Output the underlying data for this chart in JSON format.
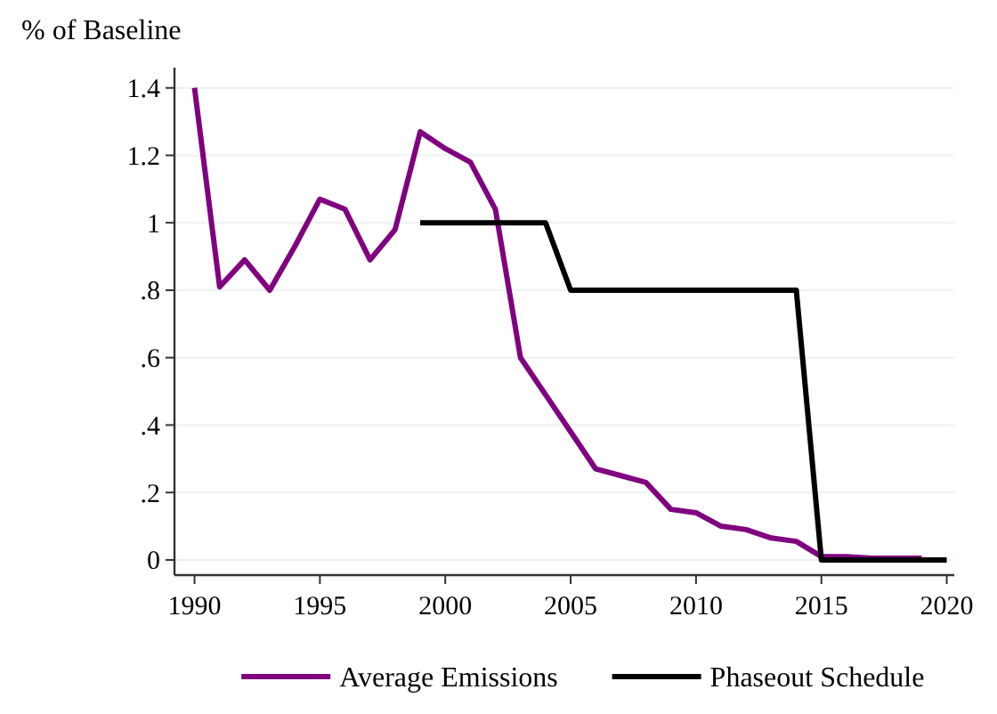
{
  "chart_data": {
    "type": "line",
    "ylabel": "% of Baseline",
    "xlim": [
      1989.2,
      2020.3
    ],
    "xticks": [
      1990,
      1995,
      2000,
      2005,
      2010,
      2015,
      2020
    ],
    "ylim": [
      -0.045,
      1.46
    ],
    "yticks": [
      {
        "value": 0,
        "label": "0"
      },
      {
        "value": 0.2,
        "label": ".2"
      },
      {
        "value": 0.4,
        "label": ".4"
      },
      {
        "value": 0.6,
        "label": ".6"
      },
      {
        "value": 0.8,
        "label": ".8"
      },
      {
        "value": 1,
        "label": "1"
      },
      {
        "value": 1.2,
        "label": "1.2"
      },
      {
        "value": 1.4,
        "label": "1.4"
      }
    ],
    "grid": "y",
    "legend": "bottom",
    "marker": "none",
    "line_style": "solid",
    "series": [
      {
        "name": "Average Emissions",
        "color": "#800080",
        "x": [
          1990,
          1991,
          1992,
          1993,
          1994,
          1995,
          1996,
          1997,
          1998,
          1999,
          2000,
          2001,
          2002,
          2003,
          2004,
          2005,
          2006,
          2007,
          2008,
          2009,
          2010,
          2011,
          2012,
          2013,
          2014,
          2015,
          2016,
          2017,
          2018,
          2019
        ],
        "values": [
          1.4,
          0.81,
          0.89,
          0.8,
          0.93,
          1.07,
          1.04,
          0.89,
          0.98,
          1.27,
          1.22,
          1.18,
          1.04,
          0.6,
          0.49,
          0.38,
          0.27,
          0.25,
          0.23,
          0.15,
          0.14,
          0.1,
          0.09,
          0.065,
          0.055,
          0.01,
          0.01,
          0.005,
          0.005,
          0.005
        ]
      },
      {
        "name": "Phaseout Schedule",
        "color": "#000000",
        "x": [
          1999,
          2004,
          2005,
          2014,
          2015,
          2020
        ],
        "values": [
          1,
          1,
          0.8,
          0.8,
          0,
          0
        ]
      }
    ]
  }
}
